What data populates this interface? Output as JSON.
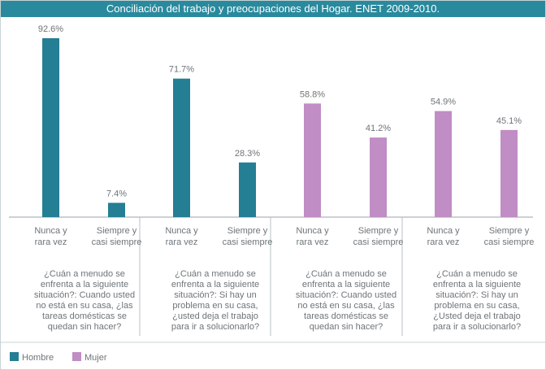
{
  "chart_data": {
    "type": "bar",
    "title": "Conciliación del trabajo y preocupaciones del Hogar. ENET 2009-2010.",
    "categories": [
      [
        "Nunca y",
        "rara vez"
      ],
      [
        "Siempre y",
        "casi siempre"
      ]
    ],
    "ylim": [
      0,
      100
    ],
    "grid": false,
    "legend_position": "bottom-left",
    "groups": [
      {
        "series": "Hombre",
        "values": [
          92.6,
          7.4
        ],
        "labels": [
          "92.6%",
          "7.4%"
        ],
        "question": [
          "¿Cuán a menudo se",
          "enfrenta a la siguiente",
          "situación?: Cuando usted",
          "no está en su casa, ¿las",
          "tareas domésticas se",
          "quedan sin hacer?"
        ]
      },
      {
        "series": "Hombre",
        "values": [
          71.7,
          28.3
        ],
        "labels": [
          "71.7%",
          "28.3%"
        ],
        "question": [
          "¿Cuán a menudo se",
          "enfrenta a la siguiente",
          "situación?: Si hay un",
          "problema en su casa,",
          "¿usted deja el trabajo",
          "para ir a solucionarlo?"
        ]
      },
      {
        "series": "Mujer",
        "values": [
          58.8,
          41.2
        ],
        "labels": [
          "58.8%",
          "41.2%"
        ],
        "question": [
          "¿Cuán a menudo se",
          "enfrenta a la siguiente",
          "situación?: Cuando usted",
          "no está en su casa, ¿las",
          "tareas domésticas se",
          "quedan sin hacer?"
        ]
      },
      {
        "series": "Mujer",
        "values": [
          54.9,
          45.1
        ],
        "labels": [
          "54.9%",
          "45.1%"
        ],
        "question": [
          "¿Cuán a menudo se",
          "enfrenta a la siguiente",
          "situación?: Si hay un",
          "problema en su casa,",
          "¿Usted deja el trabajo",
          "para ir a solucionarlo?"
        ]
      }
    ],
    "series": [
      {
        "name": "Hombre",
        "color": "#247e94"
      },
      {
        "name": "Mujer",
        "color": "#c08dc4"
      }
    ]
  }
}
